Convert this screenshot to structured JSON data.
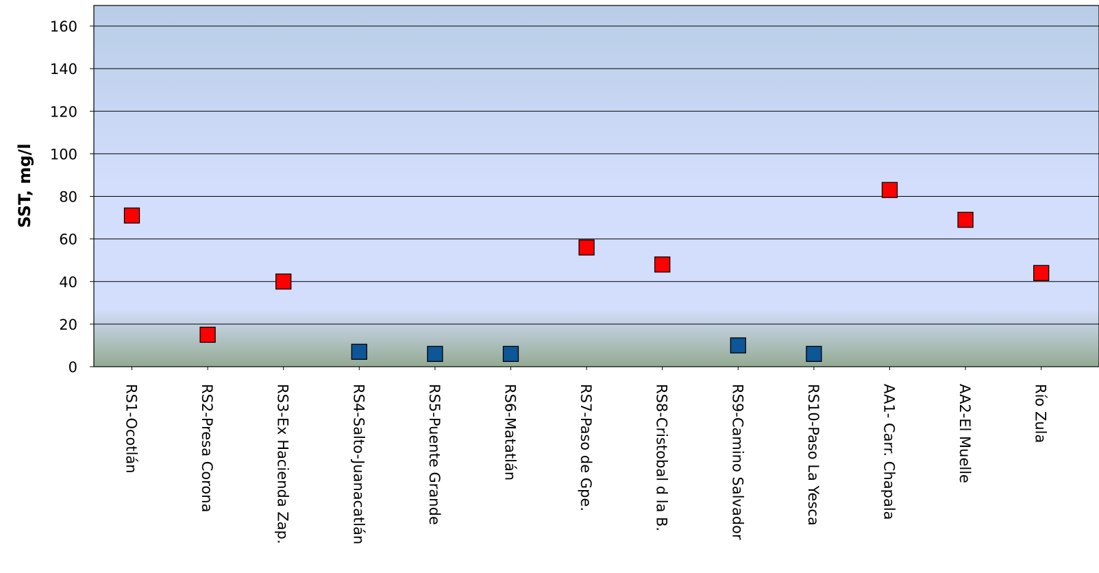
{
  "chart_data": {
    "type": "scatter",
    "ylabel": "SST, mg/l",
    "ylim": [
      0,
      170
    ],
    "yticks": [
      0,
      20,
      40,
      60,
      80,
      100,
      120,
      140,
      160
    ],
    "grid": true,
    "categories": [
      "RS1-Ocotlán",
      "RS2-Presa Corona",
      "RS3-Ex Hacienda Zap.",
      "RS4-Salto-Juanacatlán",
      "RS5-Puente Grande",
      "RS6-Matatlán",
      "RS7-Paso de Gpe.",
      "RS8-Cristobal d la B.",
      "RS9-Camino Salvador",
      "RS10-Paso La Yesca",
      "AA1- Carr. Chapala",
      "AA2-El Muelle",
      "Río Zula"
    ],
    "values": [
      71,
      15,
      40,
      7,
      6,
      6,
      56,
      48,
      10,
      6,
      83,
      69,
      44
    ],
    "point_colors": [
      "#ff0000",
      "#ff0000",
      "#ff0000",
      "#0d5697",
      "#0d5697",
      "#0d5697",
      "#ff0000",
      "#ff0000",
      "#0d5697",
      "#0d5697",
      "#ff0000",
      "#ff0000",
      "#ff0000"
    ],
    "marker": "square",
    "background_top": "#b8cde6",
    "background_mid": "#d3defc",
    "background_bottom": "#93aa92"
  }
}
